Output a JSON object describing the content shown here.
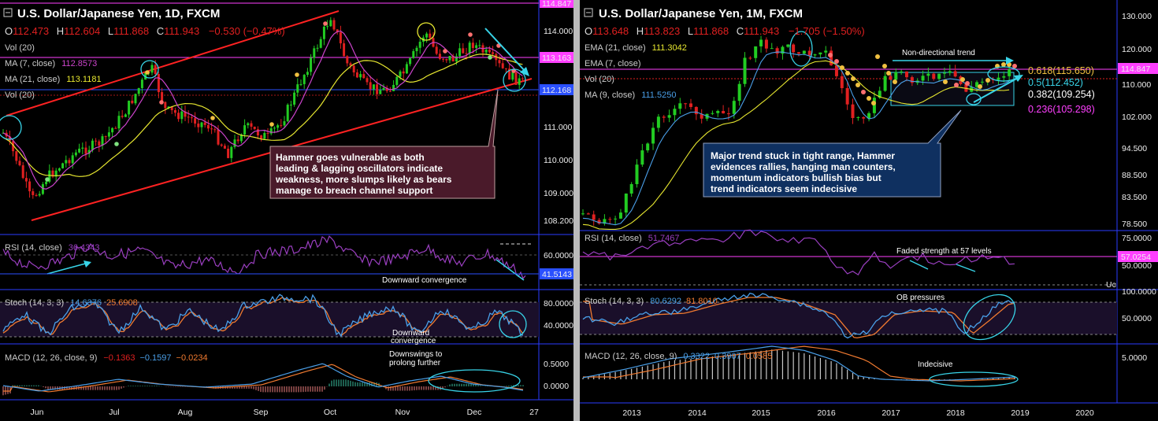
{
  "left": {
    "title": "U.S. Dollar/Japanese Yen, 1D, FXCM",
    "ohlc": {
      "o_label": "O",
      "o": "112.473",
      "h_label": "H",
      "h": "112.604",
      "l_label": "L",
      "l": "111.868",
      "c_label": "C",
      "c": "111.943",
      "change": "−0.530 (−0.47%)"
    },
    "vol": "Vol (20)",
    "ma7": {
      "label": "MA (7, close)",
      "value": "112.8573"
    },
    "ma21": {
      "label": "MA (21, close)",
      "value": "113.1181"
    },
    "vol2": "Vol (20)",
    "rsi": {
      "label": "RSI (14, close)",
      "value": "36.4343"
    },
    "stoch": {
      "label": "Stoch (14, 3, 3)",
      "k": "14.6376",
      "d": "25.6908"
    },
    "macd": {
      "label": "MACD (12, 26, close, 9)",
      "a": "−0.1363",
      "b": "−0.1597",
      "c": "−0.0234"
    },
    "price_ticks": [
      "114.000",
      "113.163",
      "112.168",
      "111.000",
      "110.000",
      "109.000",
      "108.200"
    ],
    "price_top_tag": "114.847",
    "tag_113": "113.163",
    "tag_112": "112.168",
    "rsi_ticks": [
      "60.0000"
    ],
    "rsi_tag": "41.5143",
    "stoch_ticks": [
      "80.0000",
      "40.0000"
    ],
    "macd_ticks": [
      "0.5000",
      "0.0000"
    ],
    "months": [
      "Jun",
      "Jul",
      "Aug",
      "Sep",
      "Oct",
      "Nov",
      "Dec",
      "27"
    ],
    "bubble": [
      "Hammer goes vulnerable  as both",
      "leading & lagging oscillators indicate",
      "weakness, more slumps likely as bears",
      "manage to breach channel support"
    ],
    "notes": {
      "rsi": "Downward convergence",
      "stoch1": "Downward",
      "stoch2": "convergence",
      "macd1": "Downswings to",
      "macd2": "prolong further"
    }
  },
  "right": {
    "title": "U.S. Dollar/Japanese Yen, 1M, FXCM",
    "ohlc": {
      "o_label": "O",
      "o": "113.648",
      "h_label": "H",
      "h": "113.823",
      "l_label": "L",
      "l": "111.868",
      "c_label": "C",
      "c": "111.943",
      "change": "−1.705 (−1.50%)"
    },
    "ema21": {
      "label": "EMA (21, close)",
      "value": "111.3042"
    },
    "ema7": {
      "label": "EMA (7, close)"
    },
    "vol": "Vol (20)",
    "ma9": {
      "label": "MA (9, close)",
      "value": "111.5250"
    },
    "rsi": {
      "label": "RSI (14, close)",
      "value": "51.7467"
    },
    "stoch": {
      "label": "Stoch (14, 3, 3)",
      "k": "80.6292",
      "d": "81.8010"
    },
    "macd": {
      "label": "MACD (12, 26, close, 9)",
      "a": "0.3322",
      "b": "0.3907",
      "c": "0.0585"
    },
    "price_ticks": [
      "130.000",
      "120.000",
      "110.000",
      "102.000",
      "94.500",
      "88.500",
      "83.500",
      "78.500"
    ],
    "price_tag": "114.847",
    "fib": [
      "0.618(115.650)",
      "0.5(112.452)",
      "0.382(109.254)",
      "0.236(105.298)"
    ],
    "rsi_ticks": [
      "75.0000",
      "50.0000"
    ],
    "rsi_tag": "57.0254",
    "rsi_cut": "Uc",
    "stoch_ticks": [
      "100.0000",
      "50.0000"
    ],
    "macd_ticks": [
      "5.0000"
    ],
    "years": [
      "2013",
      "2014",
      "2015",
      "2016",
      "2017",
      "2018",
      "2019",
      "2020"
    ],
    "bubble": [
      "Major trend stuck in tight range, Hammer",
      "evidences rallies, hanging man counters,",
      "momentum indicators bullish bias but",
      "trend indicators seem indecisive"
    ],
    "notes": {
      "trend": "Non-directional trend",
      "rsi": "Faded strength at 57 levels",
      "stoch": "OB pressures",
      "macd": "Indecisive"
    }
  },
  "colors": {
    "up": "#22cc22",
    "down": "#e02020",
    "channel": "#ff2222",
    "ma7": "#cc44cc",
    "ma21": "#e8e830",
    "rsi": "#9a3fc0",
    "stoch_k": "#4a9fe8",
    "stoch_d": "#f07a30",
    "cyan": "#38d4e8",
    "magenta": "#ff40ff",
    "blue": "#2a50ff"
  }
}
